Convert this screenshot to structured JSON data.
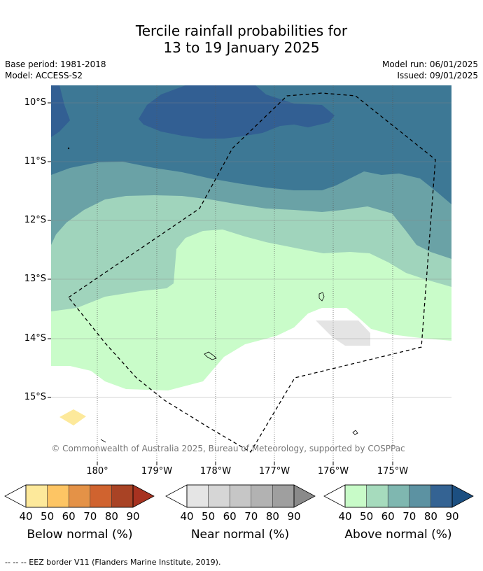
{
  "title_line1": "Tercile rainfall probabilities for",
  "title_line2": "13 to 19 January 2025",
  "base_period": "Base period: 1981-2018",
  "model": "Model: ACCESS-S2",
  "model_run": "Model run: 06/01/2025",
  "issued": "Issued: 09/01/2025",
  "copyright": "© Commonwealth of Australia 2025, Bureau of Meteorology, supported by COSPPac",
  "lat_labels": [
    "10°S",
    "11°S",
    "12°S",
    "13°S",
    "14°S",
    "15°S"
  ],
  "lon_labels": [
    "180°",
    "179°W",
    "178°W",
    "177°W",
    "176°W",
    "175°W"
  ],
  "colorbars": [
    {
      "label": "Below normal (%)",
      "ticks": [
        "40",
        "50",
        "60",
        "70",
        "80",
        "90"
      ],
      "colors": [
        "#fde99b",
        "#fdc564",
        "#e49247",
        "#d0632f",
        "#a94325",
        "#a73220"
      ]
    },
    {
      "label": "Near normal (%)",
      "ticks": [
        "40",
        "50",
        "60",
        "70",
        "80",
        "90"
      ],
      "colors": [
        "#e5e5e5",
        "#d6d6d6",
        "#c6c6c6",
        "#b2b2b2",
        "#9f9f9f",
        "#8a8a8a"
      ]
    },
    {
      "label": "Above normal (%)",
      "ticks": [
        "40",
        "50",
        "60",
        "70",
        "80",
        "90"
      ],
      "colors": [
        "#c8fbc8",
        "#a6dbbd",
        "#7fb7b0",
        "#5c92a2",
        "#346393",
        "#1c4f81"
      ]
    }
  ],
  "footnote": "--  --  -- EEZ border V11 (Flanders Marine Institute, 2019)."
}
